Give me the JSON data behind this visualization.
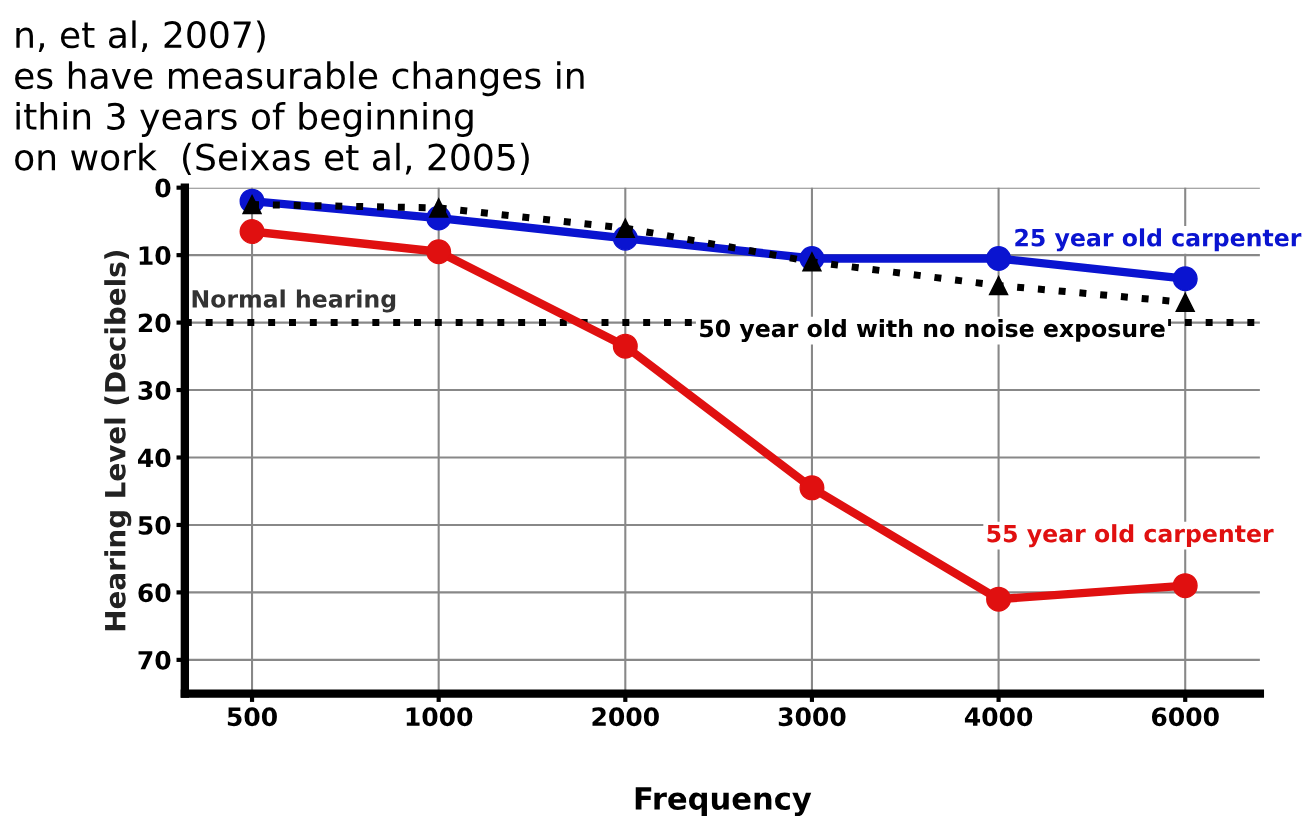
{
  "chart_data": {
    "type": "line",
    "xlabel": "Frequency",
    "ylabel": "Hearing Level (Decibels)",
    "categories": [
      "500",
      "1000",
      "2000",
      "3000",
      "4000",
      "6000"
    ],
    "series": [
      {
        "name": "25 year old carpenter",
        "color": "#0a14d0",
        "values": [
          2,
          4.5,
          7.5,
          10.5,
          10.5,
          13.5
        ],
        "marker": "circle",
        "line_style": "solid"
      },
      {
        "name": "50 year old with no noise exposure",
        "color": "#000000",
        "values": [
          2.5,
          3,
          6,
          11,
          14.5,
          17
        ],
        "marker": "triangle",
        "line_style": "dotted"
      },
      {
        "name": "55 year old carpenter",
        "color": "#e01010",
        "values": [
          6.5,
          9.5,
          23.5,
          44.5,
          61,
          59
        ],
        "marker": "circle",
        "line_style": "solid"
      }
    ],
    "ylim": [
      75,
      0
    ],
    "yticks": [
      0,
      10,
      20,
      30,
      40,
      50,
      60,
      70
    ],
    "grid": true,
    "legend": false,
    "ref_lines": [
      {
        "axis": "y",
        "value": 20,
        "label": "Normal hearing",
        "color": "#000000",
        "line_style": "dotted"
      }
    ],
    "annotations": [
      "n, et al, 2007)",
      "es have measurable changes in",
      "ithin 3 years of beginning",
      "on work  (Seixas et al, 2005)"
    ]
  }
}
